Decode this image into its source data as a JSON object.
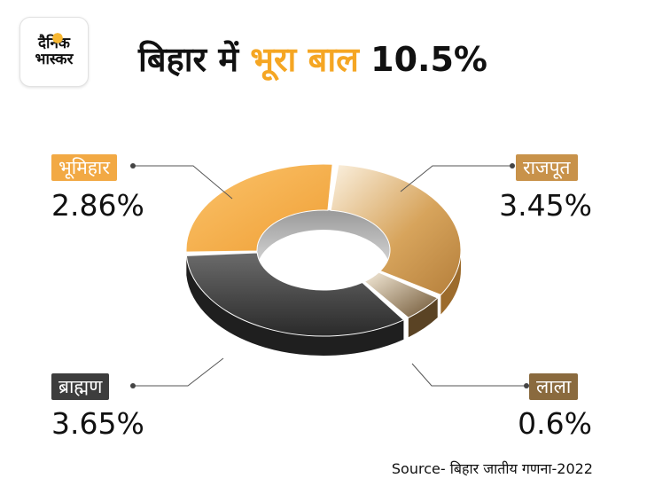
{
  "logo": {
    "line1": "दैनिक",
    "line2": "भास्कर"
  },
  "title": {
    "prefix": "बिहार में ",
    "highlight": "भूरा बाल",
    "suffix": " 10.5%"
  },
  "source": "Source- बिहार जातीय गणना-2022",
  "chart_data": {
    "type": "pie",
    "style": "3d-donut",
    "title": "बिहार में भूरा बाल 10.5%",
    "total": 10.5,
    "unit": "%",
    "slices": [
      {
        "label": "राजपूत",
        "value": 3.45,
        "display": "3.45%",
        "color": "#c8924a"
      },
      {
        "label": "लाला",
        "value": 0.6,
        "display": "0.6%",
        "color": "#8a6a3e"
      },
      {
        "label": "ब्राह्मण",
        "value": 3.65,
        "display": "3.65%",
        "color": "#3a3a3a"
      },
      {
        "label": "भूमिहार",
        "value": 2.86,
        "display": "2.86%",
        "color": "#f2a944"
      }
    ]
  }
}
